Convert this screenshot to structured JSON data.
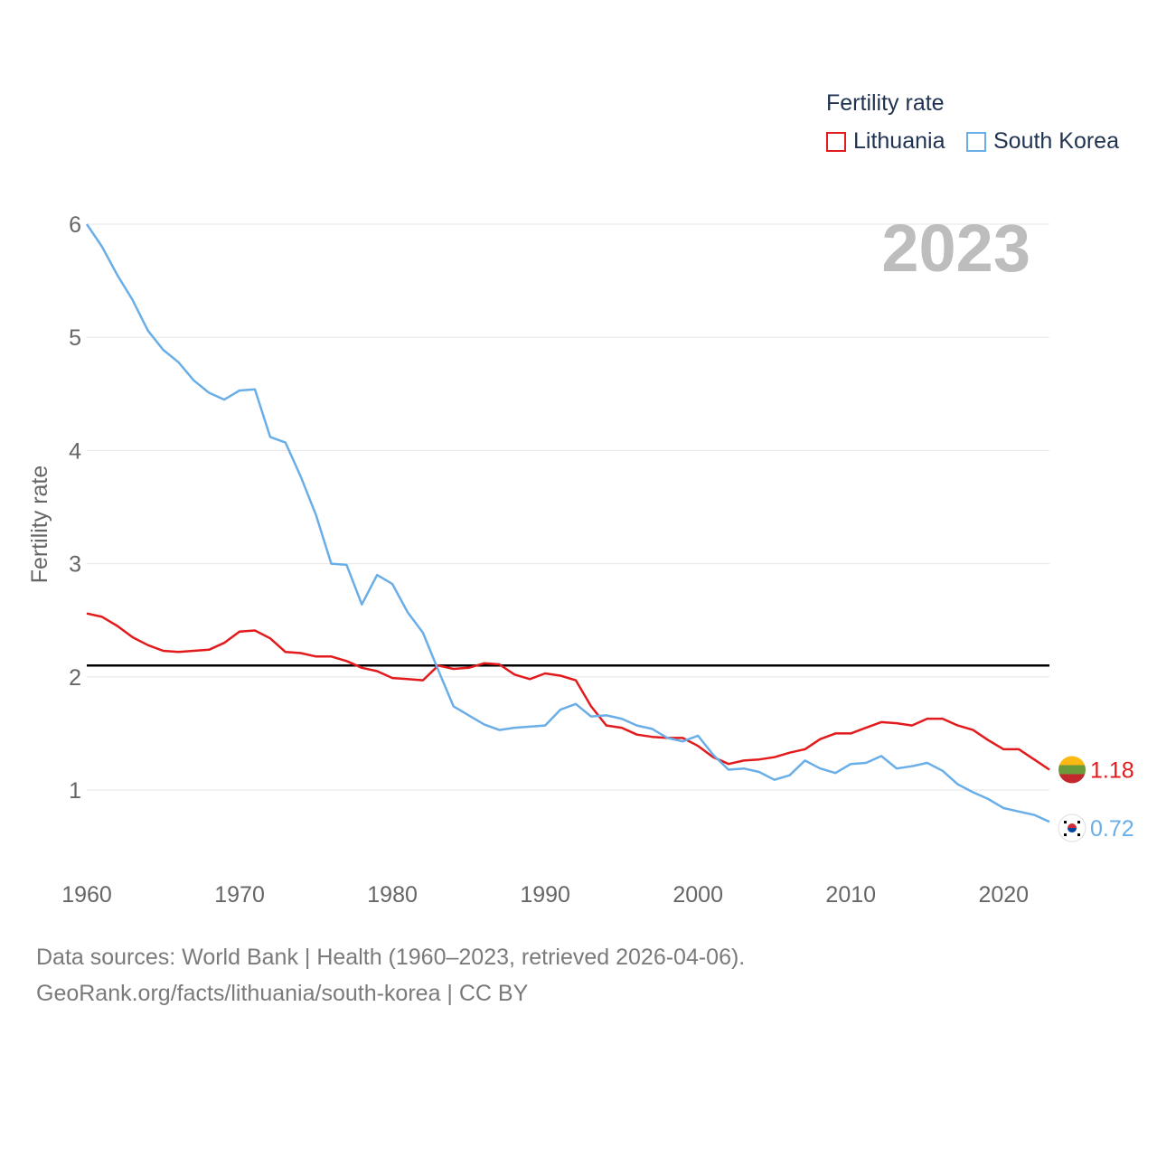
{
  "legend": {
    "title": "Fertility rate",
    "items": [
      {
        "label": "Lithuania",
        "color": "#e31a1c"
      },
      {
        "label": "South Korea",
        "color": "#6aaee8"
      }
    ]
  },
  "footer": {
    "line1": "Data sources: World Bank | Health (1960–2023, retrieved 2026-04-06).",
    "line2": "GeoRank.org/facts/lithuania/south-korea | CC BY"
  },
  "chart_data": {
    "type": "line",
    "title": "Fertility rate",
    "year_label": "2023",
    "xlabel": "",
    "ylabel": "Fertility rate",
    "xlim": [
      1960,
      2023
    ],
    "ylim": [
      0.4,
      6
    ],
    "x_ticks": [
      1960,
      1970,
      1980,
      1990,
      2000,
      2010,
      2020
    ],
    "y_ticks": [
      1,
      2,
      3,
      4,
      5,
      6
    ],
    "grid": true,
    "legend_position": "top-right",
    "reference_line": {
      "value": 2.1
    },
    "x": [
      1960,
      1961,
      1962,
      1963,
      1964,
      1965,
      1966,
      1967,
      1968,
      1969,
      1970,
      1971,
      1972,
      1973,
      1974,
      1975,
      1976,
      1977,
      1978,
      1979,
      1980,
      1981,
      1982,
      1983,
      1984,
      1985,
      1986,
      1987,
      1988,
      1989,
      1990,
      1991,
      1992,
      1993,
      1994,
      1995,
      1996,
      1997,
      1998,
      1999,
      2000,
      2001,
      2002,
      2003,
      2004,
      2005,
      2006,
      2007,
      2008,
      2009,
      2010,
      2011,
      2012,
      2013,
      2014,
      2015,
      2016,
      2017,
      2018,
      2019,
      2020,
      2021,
      2022,
      2023
    ],
    "series": [
      {
        "name": "Lithuania",
        "color": "#e31a1c",
        "end_label": "1.18",
        "values": [
          2.56,
          2.53,
          2.45,
          2.35,
          2.28,
          2.23,
          2.22,
          2.23,
          2.24,
          2.3,
          2.4,
          2.41,
          2.34,
          2.22,
          2.21,
          2.18,
          2.18,
          2.14,
          2.08,
          2.05,
          1.99,
          1.98,
          1.97,
          2.1,
          2.07,
          2.08,
          2.12,
          2.11,
          2.02,
          1.98,
          2.03,
          2.01,
          1.97,
          1.74,
          1.57,
          1.55,
          1.49,
          1.47,
          1.46,
          1.46,
          1.39,
          1.29,
          1.23,
          1.26,
          1.27,
          1.29,
          1.33,
          1.36,
          1.45,
          1.5,
          1.5,
          1.55,
          1.6,
          1.59,
          1.57,
          1.63,
          1.63,
          1.57,
          1.53,
          1.44,
          1.36,
          1.36,
          1.27,
          1.18
        ]
      },
      {
        "name": "South Korea",
        "color": "#6aaee8",
        "end_label": "0.72",
        "values": [
          6.0,
          5.8,
          5.55,
          5.33,
          5.06,
          4.89,
          4.78,
          4.62,
          4.51,
          4.45,
          4.53,
          4.54,
          4.12,
          4.07,
          3.77,
          3.43,
          3.0,
          2.99,
          2.64,
          2.9,
          2.82,
          2.57,
          2.39,
          2.06,
          1.74,
          1.66,
          1.58,
          1.53,
          1.55,
          1.56,
          1.57,
          1.71,
          1.76,
          1.65,
          1.66,
          1.63,
          1.57,
          1.54,
          1.46,
          1.43,
          1.48,
          1.31,
          1.18,
          1.19,
          1.16,
          1.09,
          1.13,
          1.26,
          1.19,
          1.15,
          1.23,
          1.24,
          1.3,
          1.19,
          1.21,
          1.24,
          1.17,
          1.05,
          0.98,
          0.92,
          0.84,
          0.81,
          0.78,
          0.72
        ]
      }
    ]
  }
}
